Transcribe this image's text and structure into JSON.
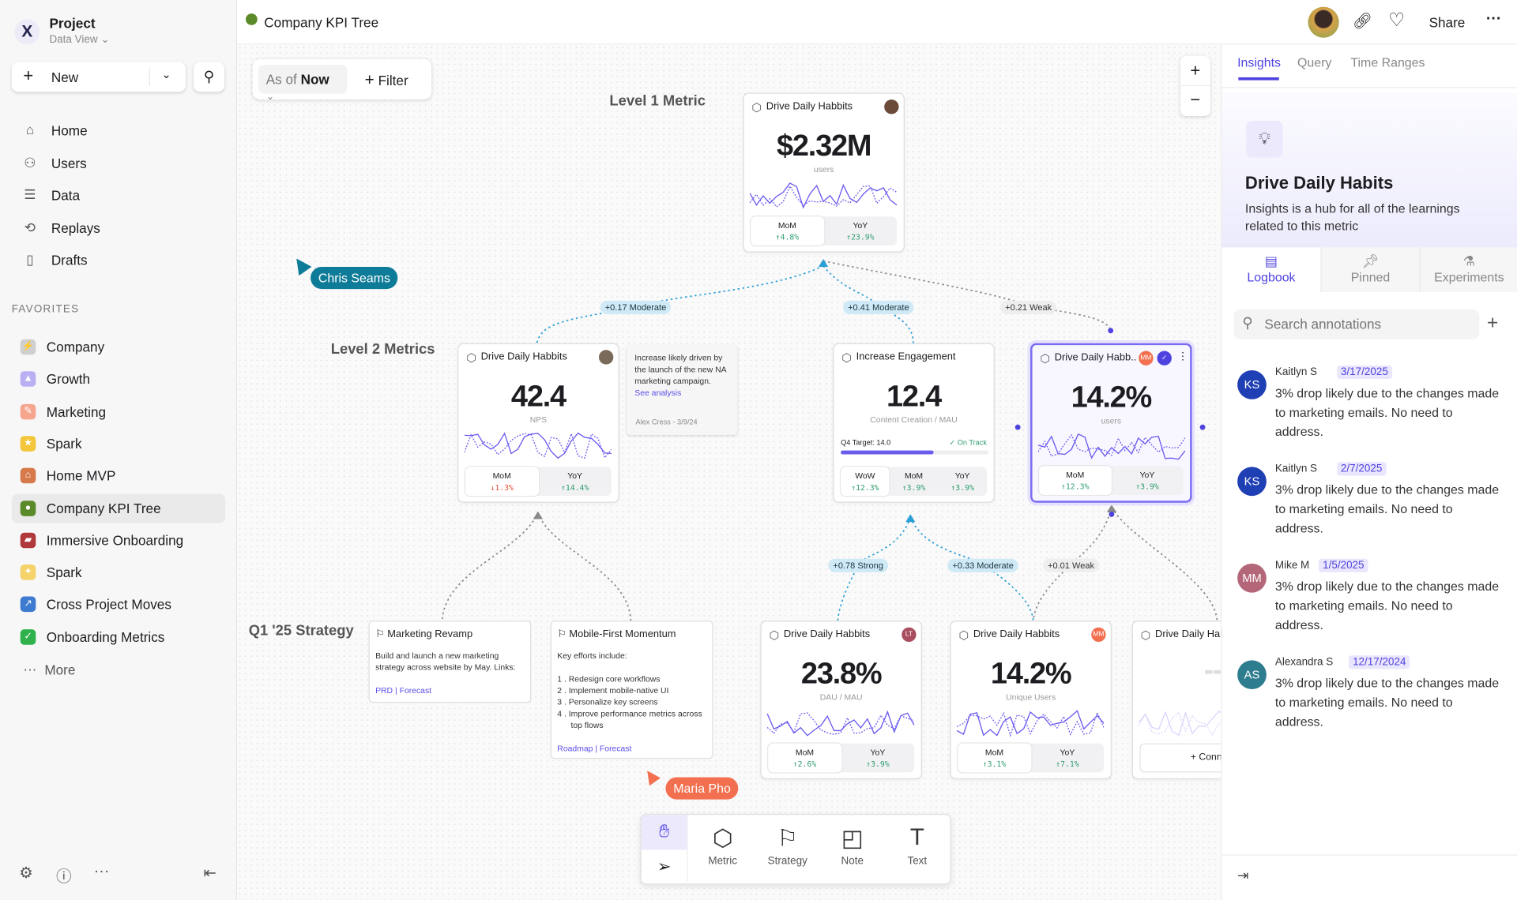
{
  "sidebar": {
    "project": "Project",
    "view": "Data View",
    "new_label": "New",
    "nav": [
      {
        "label": "Home",
        "icon": "home-icon",
        "glyph": "⌂"
      },
      {
        "label": "Users",
        "icon": "users-icon",
        "glyph": "⚇"
      },
      {
        "label": "Data",
        "icon": "database-icon",
        "glyph": "☰"
      },
      {
        "label": "Replays",
        "icon": "replay-icon",
        "glyph": "⟲"
      },
      {
        "label": "Drafts",
        "icon": "file-icon",
        "glyph": "▯"
      }
    ],
    "favorites_header": "FAVORITES",
    "favorites": [
      {
        "label": "Company",
        "color": "#cfcfcf",
        "glyph": "⚡"
      },
      {
        "label": "Growth",
        "color": "#b9b0f3",
        "glyph": "▲"
      },
      {
        "label": "Marketing",
        "color": "#f6a58e",
        "glyph": "✎"
      },
      {
        "label": "Spark",
        "color": "#f3c53a",
        "glyph": "★"
      },
      {
        "label": "Home MVP",
        "color": "#d77a4b",
        "glyph": "⌂"
      },
      {
        "label": "Company KPI Tree",
        "color": "#5b8a2a",
        "glyph": "●",
        "selected": true
      },
      {
        "label": "Immersive Onboarding",
        "color": "#b0393b",
        "glyph": "▰"
      },
      {
        "label": "Spark",
        "color": "#f5d36a",
        "glyph": "✦"
      },
      {
        "label": "Cross Project Moves",
        "color": "#3d7bd1",
        "glyph": "↗"
      },
      {
        "label": "Onboarding Metrics",
        "color": "#2fb24c",
        "glyph": "✓"
      }
    ],
    "more_label": "More"
  },
  "header": {
    "title": "Company KPI Tree",
    "share": "Share"
  },
  "toolbar": {
    "as_of": "As of",
    "now": "Now",
    "filter": "Filter"
  },
  "canvas": {
    "levels": {
      "l1": "Level 1 Metric",
      "l2": "Level 2 Metrics",
      "strategy": "Q1 '25 Strategy"
    },
    "cursors": [
      {
        "name": "Chris Seams",
        "color": "#0e7c99"
      },
      {
        "name": "Maria Pho",
        "color": "#f2704f"
      }
    ],
    "edges": [
      "+0.17 Moderate",
      "+0.41 Moderate",
      "+0.21 Weak",
      "+0.78 Strong",
      "+0.33 Moderate",
      "+0.01 Weak"
    ],
    "cards": [
      {
        "title": "Drive Daily Habbits",
        "value": "$2.32M",
        "unit": "users",
        "avatar": "",
        "avatar_color": "#6b4a3a",
        "stats": [
          {
            "label": "MoM",
            "value": "↑4.8%",
            "dir": "up"
          },
          {
            "label": "YoY",
            "value": "↑23.9%",
            "dir": "up"
          }
        ]
      },
      {
        "title": "Drive Daily Habbits",
        "value": "42.4",
        "unit": "NPS",
        "avatar": "",
        "avatar_color": "#7a6a5a",
        "stats": [
          {
            "label": "MoM",
            "value": "↓1.3%",
            "dir": "down"
          },
          {
            "label": "YoY",
            "value": "↑14.4%",
            "dir": "up"
          }
        ]
      },
      {
        "title": "Increase Engagement",
        "value": "12.4",
        "unit": "Content Creation / MAU",
        "target_label": "Q4 Target: 14.0",
        "target_status": "On Track",
        "progress": 0.63,
        "stats": [
          {
            "label": "WoW",
            "value": "↑12.3%",
            "dir": "up"
          },
          {
            "label": "MoM",
            "value": "↑3.9%",
            "dir": "up"
          },
          {
            "label": "YoY",
            "value": "↑3.9%",
            "dir": "up"
          }
        ]
      },
      {
        "title": "Drive Daily Habb..",
        "value": "14.2%",
        "unit": "users",
        "avatar": "MM",
        "avatar_color": "#f2704f",
        "verified": true,
        "selected": true,
        "stats": [
          {
            "label": "MoM",
            "value": "↑12.3%",
            "dir": "up"
          },
          {
            "label": "YoY",
            "value": "↑3.9%",
            "dir": "up"
          }
        ]
      },
      {
        "title": "Drive Daily Habbits",
        "value": "23.8%",
        "unit": "DAU / MAU",
        "avatar": "LT",
        "avatar_color": "#a84e5e",
        "stats": [
          {
            "label": "MoM",
            "value": "↑2.6%",
            "dir": "up"
          },
          {
            "label": "YoY",
            "value": "↑3.9%",
            "dir": "up"
          }
        ]
      },
      {
        "title": "Drive Daily Habbits",
        "value": "14.2%",
        "unit": "Unique Users",
        "avatar": "MM",
        "avatar_color": "#f2704f",
        "stats": [
          {
            "label": "MoM",
            "value": "↑3.1%",
            "dir": "up"
          },
          {
            "label": "YoY",
            "value": "↑7.1%",
            "dir": "up"
          }
        ]
      },
      {
        "title": "Drive Daily Habbits",
        "value": "--",
        "unit": "",
        "connect": "+ Connect",
        "stats": []
      }
    ],
    "note": {
      "text": "Increase likely driven by the launch of the new NA marketing campaign.",
      "link": "See analysis",
      "author": "Alex Cress - 3/9/24"
    },
    "strategies": [
      {
        "title": "Marketing Revamp",
        "body": "Build and launch a new marketing strategy across website by May. Links:",
        "list": [],
        "links": [
          "PRD",
          "Forecast"
        ]
      },
      {
        "title": "Mobile-First Momentum",
        "body": "Key efforts include:",
        "list": [
          "Redesign core workflows",
          "Implement mobile-native UI",
          "Personalize key screens",
          "Improve performance metrics across top flows"
        ],
        "links": [
          "Roadmap",
          "Forecast"
        ]
      }
    ],
    "tools": [
      {
        "label": "Metric",
        "glyph": "⬡"
      },
      {
        "label": "Strategy",
        "glyph": "⚐"
      },
      {
        "label": "Note",
        "glyph": "◰"
      },
      {
        "label": "Text",
        "glyph": "T"
      }
    ]
  },
  "right_panel": {
    "tabs": [
      "Insights",
      "Query",
      "Time Ranges"
    ],
    "hero_title": "Drive Daily Habits",
    "hero_desc": "Insights is a hub for all of the learnings related to this metric",
    "subtabs": [
      "Logbook",
      "Pinned",
      "Experiments"
    ],
    "search_placeholder": "Search annotations",
    "annotations": [
      {
        "initials": "KS",
        "name": "Kaitlyn S",
        "date": "3/17/2025",
        "color": "#1f3fb5",
        "text": "3% drop likely due to the changes made to marketing emails. No need to address."
      },
      {
        "initials": "KS",
        "name": "Kaitlyn S",
        "date": "2/7/2025",
        "color": "#1f3fb5",
        "text": "3% drop likely due to the changes made to marketing emails. No need to address."
      },
      {
        "initials": "MM",
        "name": "Mike M",
        "date": "1/5/2025",
        "color": "#b5677a",
        "text": "3% drop likely due to the changes made to marketing emails. No need to address."
      },
      {
        "initials": "AS",
        "name": "Alexandra S",
        "date": "12/17/2024",
        "color": "#2e7d8f",
        "text": "3% drop likely due to the changes made to marketing emails. No need to address."
      }
    ]
  },
  "colors": {
    "accent": "#5b4ee8",
    "connector_blue": "#2a9fd6",
    "up": "#2f9e6e",
    "down": "#e5533d"
  }
}
